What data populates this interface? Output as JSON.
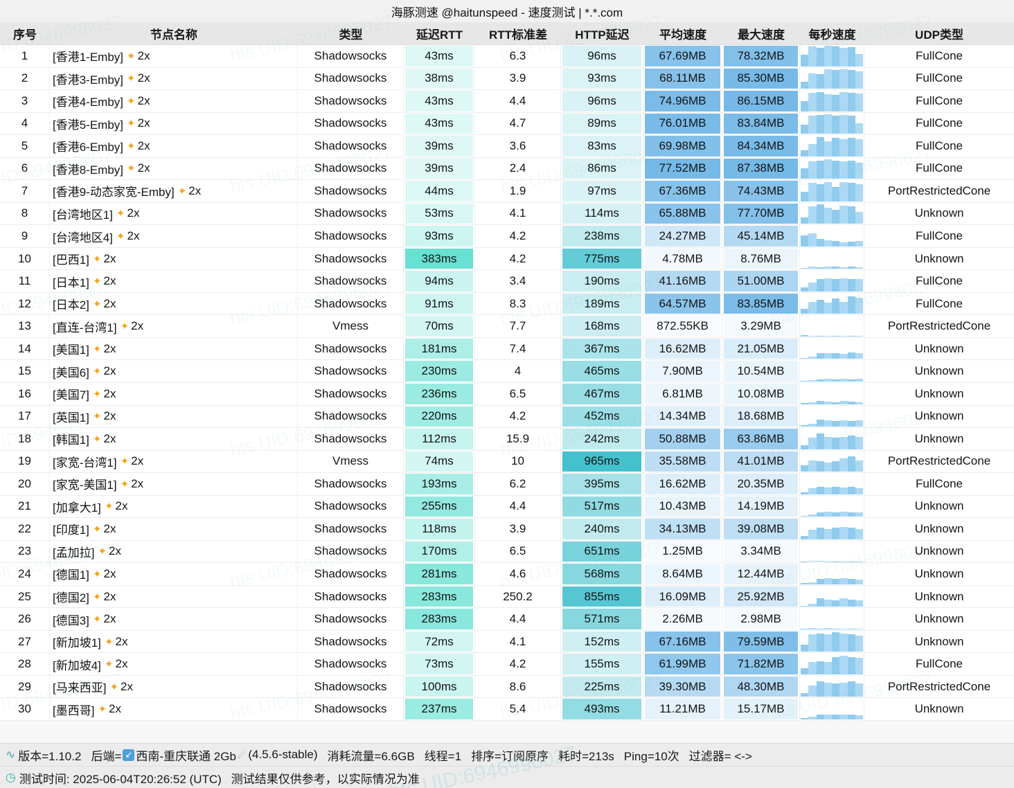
{
  "title": "海豚测速 @haitunspeed - 速度测试 | *.*.com",
  "watermark_text": "hts UID:6946996027",
  "columns": [
    "序号",
    "节点名称",
    "类型",
    "延迟RTT",
    "RTT标准差",
    "HTTP延迟",
    "平均速度",
    "最大速度",
    "每秒速度",
    "UDP类型"
  ],
  "row_suffix": "2x",
  "colors": {
    "latency_base": "#3fd8c6",
    "http_base": "#27b8c6",
    "speed_base": "#4aa3e0",
    "spark_dark": "#74bee9",
    "spark_light": "#96d0f0",
    "sparkle": "#f5a31a"
  },
  "rows": [
    [
      "1",
      "[香港1-Emby]",
      "Shadowsocks",
      43,
      "6.3",
      96,
      "67.69MB",
      "78.32MB",
      "FullCone",
      [
        0.55,
        0.95,
        0.9,
        1.0,
        0.95,
        0.9,
        0.92,
        0.6
      ]
    ],
    [
      "2",
      "[香港3-Emby]",
      "Shadowsocks",
      38,
      "3.9",
      93,
      "68.11MB",
      "85.30MB",
      "FullCone",
      [
        0.35,
        0.75,
        0.7,
        0.95,
        0.9,
        0.95,
        0.9,
        0.85
      ]
    ],
    [
      "3",
      "[香港4-Emby]",
      "Shadowsocks",
      43,
      "4.4",
      96,
      "74.96MB",
      "86.15MB",
      "FullCone",
      [
        0.5,
        0.9,
        0.95,
        0.85,
        0.8,
        0.95,
        0.9,
        0.88
      ]
    ],
    [
      "4",
      "[香港5-Emby]",
      "Shadowsocks",
      43,
      "4.7",
      89,
      "76.01MB",
      "83.84MB",
      "FullCone",
      [
        0.45,
        0.9,
        0.92,
        0.95,
        0.9,
        0.92,
        0.88,
        0.5
      ]
    ],
    [
      "5",
      "[香港6-Emby]",
      "Shadowsocks",
      39,
      "3.6",
      83,
      "69.98MB",
      "84.34MB",
      "FullCone",
      [
        0.3,
        0.6,
        0.95,
        0.75,
        0.9,
        0.85,
        0.9,
        0.85
      ]
    ],
    [
      "6",
      "[香港8-Emby]",
      "Shadowsocks",
      39,
      "2.4",
      86,
      "77.52MB",
      "87.38MB",
      "FullCone",
      [
        0.5,
        0.85,
        0.9,
        0.95,
        0.9,
        0.85,
        0.9,
        0.8
      ]
    ],
    [
      "7",
      "[香港9-动态家宽-Emby]",
      "Shadowsocks",
      44,
      "1.9",
      97,
      "67.36MB",
      "74.43MB",
      "PortRestrictedCone",
      [
        0.45,
        0.9,
        0.85,
        0.95,
        0.7,
        0.95,
        0.9,
        0.85
      ]
    ],
    [
      "8",
      "[台湾地区1]",
      "Shadowsocks",
      53,
      "4.1",
      114,
      "65.88MB",
      "77.70MB",
      "Unknown",
      [
        0.3,
        0.85,
        0.95,
        0.8,
        0.7,
        0.9,
        0.85,
        0.6
      ]
    ],
    [
      "9",
      "[台湾地区4]",
      "Shadowsocks",
      93,
      "4.2",
      238,
      "24.27MB",
      "45.14MB",
      "FullCone",
      [
        0.55,
        0.65,
        0.35,
        0.3,
        0.25,
        0.2,
        0.22,
        0.28
      ]
    ],
    [
      "10",
      "[巴西1]",
      "Shadowsocks",
      383,
      "4.2",
      775,
      "4.78MB",
      "8.76MB",
      "Unknown",
      [
        0.04,
        0.1,
        0.08,
        0.12,
        0.1,
        0.08,
        0.1,
        0.08
      ]
    ],
    [
      "11",
      "[日本1]",
      "Shadowsocks",
      94,
      "3.4",
      190,
      "41.16MB",
      "51.00MB",
      "FullCone",
      [
        0.2,
        0.45,
        0.6,
        0.65,
        0.6,
        0.65,
        0.6,
        0.62
      ]
    ],
    [
      "12",
      "[日本2]",
      "Shadowsocks",
      91,
      "8.3",
      189,
      "64.57MB",
      "83.85MB",
      "FullCone",
      [
        0.25,
        0.6,
        0.7,
        0.55,
        0.75,
        0.6,
        0.85,
        0.8
      ]
    ],
    [
      "13",
      "[直连-台湾1]",
      "Vmess",
      70,
      "7.7",
      168,
      "872.55KB",
      "3.29MB",
      "PortRestrictedCone",
      [
        0.08,
        0.04,
        0.02,
        0.02,
        0.02,
        0.02,
        0.02,
        0.02
      ]
    ],
    [
      "14",
      "[美国1]",
      "Shadowsocks",
      181,
      "7.4",
      367,
      "16.62MB",
      "21.05MB",
      "Unknown",
      [
        0.05,
        0.1,
        0.3,
        0.28,
        0.3,
        0.25,
        0.32,
        0.3
      ]
    ],
    [
      "15",
      "[美国6]",
      "Shadowsocks",
      230,
      "4",
      465,
      "7.90MB",
      "10.54MB",
      "Unknown",
      [
        0.04,
        0.06,
        0.1,
        0.12,
        0.1,
        0.12,
        0.1,
        0.12
      ]
    ],
    [
      "16",
      "[美国7]",
      "Shadowsocks",
      236,
      "6.5",
      467,
      "6.81MB",
      "10.08MB",
      "Unknown",
      [
        0.04,
        0.08,
        0.14,
        0.12,
        0.1,
        0.14,
        0.12,
        0.1
      ]
    ],
    [
      "17",
      "[英国1]",
      "Shadowsocks",
      220,
      "4.2",
      452,
      "14.34MB",
      "18.68MB",
      "Unknown",
      [
        0.06,
        0.15,
        0.35,
        0.3,
        0.28,
        0.3,
        0.28,
        0.3
      ]
    ],
    [
      "18",
      "[韩国1]",
      "Shadowsocks",
      112,
      "15.9",
      242,
      "50.88MB",
      "63.86MB",
      "Unknown",
      [
        0.2,
        0.55,
        0.75,
        0.6,
        0.55,
        0.6,
        0.65,
        0.6
      ]
    ],
    [
      "19",
      "[家宽-台湾1]",
      "Vmess",
      74,
      "10",
      965,
      "35.58MB",
      "41.01MB",
      "PortRestrictedCone",
      [
        0.3,
        0.55,
        0.5,
        0.45,
        0.5,
        0.65,
        0.75,
        0.55
      ]
    ],
    [
      "20",
      "[家宽-美国1]",
      "Shadowsocks",
      193,
      "6.2",
      395,
      "16.62MB",
      "20.35MB",
      "FullCone",
      [
        0.1,
        0.3,
        0.35,
        0.32,
        0.35,
        0.33,
        0.35,
        0.3
      ]
    ],
    [
      "21",
      "[加拿大1]",
      "Shadowsocks",
      255,
      "4.4",
      517,
      "10.43MB",
      "14.19MB",
      "Unknown",
      [
        0.05,
        0.12,
        0.22,
        0.25,
        0.22,
        0.25,
        0.22,
        0.2
      ]
    ],
    [
      "22",
      "[印度1]",
      "Shadowsocks",
      118,
      "3.9",
      240,
      "34.13MB",
      "39.08MB",
      "Unknown",
      [
        0.15,
        0.45,
        0.55,
        0.5,
        0.55,
        0.6,
        0.55,
        0.5
      ]
    ],
    [
      "23",
      "[孟加拉]",
      "Shadowsocks",
      170,
      "6.5",
      651,
      "1.25MB",
      "3.34MB",
      "Unknown",
      [
        0.02,
        0.04,
        0.03,
        0.02,
        0.02,
        0.02,
        0.02,
        0.02
      ]
    ],
    [
      "24",
      "[德国1]",
      "Shadowsocks",
      281,
      "4.6",
      568,
      "8.64MB",
      "12.44MB",
      "Unknown",
      [
        0.05,
        0.1,
        0.25,
        0.3,
        0.25,
        0.28,
        0.25,
        0.22
      ]
    ],
    [
      "25",
      "[德国2]",
      "Shadowsocks",
      283,
      "250.2",
      855,
      "16.09MB",
      "25.92MB",
      "Unknown",
      [
        0.05,
        0.15,
        0.4,
        0.35,
        0.3,
        0.4,
        0.35,
        0.3
      ]
    ],
    [
      "26",
      "[德国3]",
      "Shadowsocks",
      283,
      "4.4",
      571,
      "2.26MB",
      "2.98MB",
      "Unknown",
      [
        0.03,
        0.05,
        0.04,
        0.05,
        0.04,
        0.04,
        0.04,
        0.03
      ]
    ],
    [
      "27",
      "[新加坡1]",
      "Shadowsocks",
      72,
      "4.1",
      152,
      "67.16MB",
      "79.59MB",
      "Unknown",
      [
        0.35,
        0.85,
        0.9,
        0.85,
        0.95,
        0.9,
        0.85,
        0.8
      ]
    ],
    [
      "28",
      "[新加坡4]",
      "Shadowsocks",
      73,
      "4.2",
      155,
      "61.99MB",
      "71.82MB",
      "FullCone",
      [
        0.3,
        0.6,
        0.65,
        0.6,
        0.85,
        0.9,
        0.85,
        0.8
      ]
    ],
    [
      "29",
      "[马来西亚]",
      "Shadowsocks",
      100,
      "8.6",
      225,
      "39.30MB",
      "48.30MB",
      "PortRestrictedCone",
      [
        0.2,
        0.55,
        0.75,
        0.7,
        0.65,
        0.7,
        0.75,
        0.65
      ]
    ],
    [
      "30",
      "[墨西哥]",
      "Shadowsocks",
      237,
      "5.4",
      493,
      "11.21MB",
      "15.17MB",
      "Unknown",
      [
        0.05,
        0.15,
        0.25,
        0.22,
        0.25,
        0.22,
        0.25,
        0.2
      ]
    ]
  ],
  "footer": {
    "line1": [
      {
        "icon": "dna-icon"
      },
      {
        "text": "版本=1.10.2",
        "sep": true
      },
      {
        "text": "后端="
      },
      {
        "icon": "backend-arrow-icon"
      },
      {
        "text": "西南-重庆联通 2Gb"
      },
      {
        "icon": "satellite-icon"
      },
      {
        "text": "(4.5.6-stable)",
        "sep": true
      },
      {
        "text": "消耗流量=6.6GB",
        "sep": true
      },
      {
        "text": "线程=1",
        "sep": true
      },
      {
        "text": "排序=订阅原序",
        "sep": true
      },
      {
        "text": "耗时=213s",
        "sep": true
      },
      {
        "text": "Ping=10次",
        "sep": true
      },
      {
        "text": "过滤器= <->"
      }
    ],
    "line2": [
      {
        "icon": "clock-icon"
      },
      {
        "text": "测试时间: 2025-06-04T20:26:52 (UTC)",
        "sep": true
      },
      {
        "text": "测试结果仅供参考，以实际情况为准"
      }
    ]
  },
  "icons": {
    "dna-icon": "∿",
    "backend-arrow-icon": "↙",
    "satellite-icon": "☄",
    "clock-icon": "◷",
    "sparkles-icon": "✦"
  }
}
